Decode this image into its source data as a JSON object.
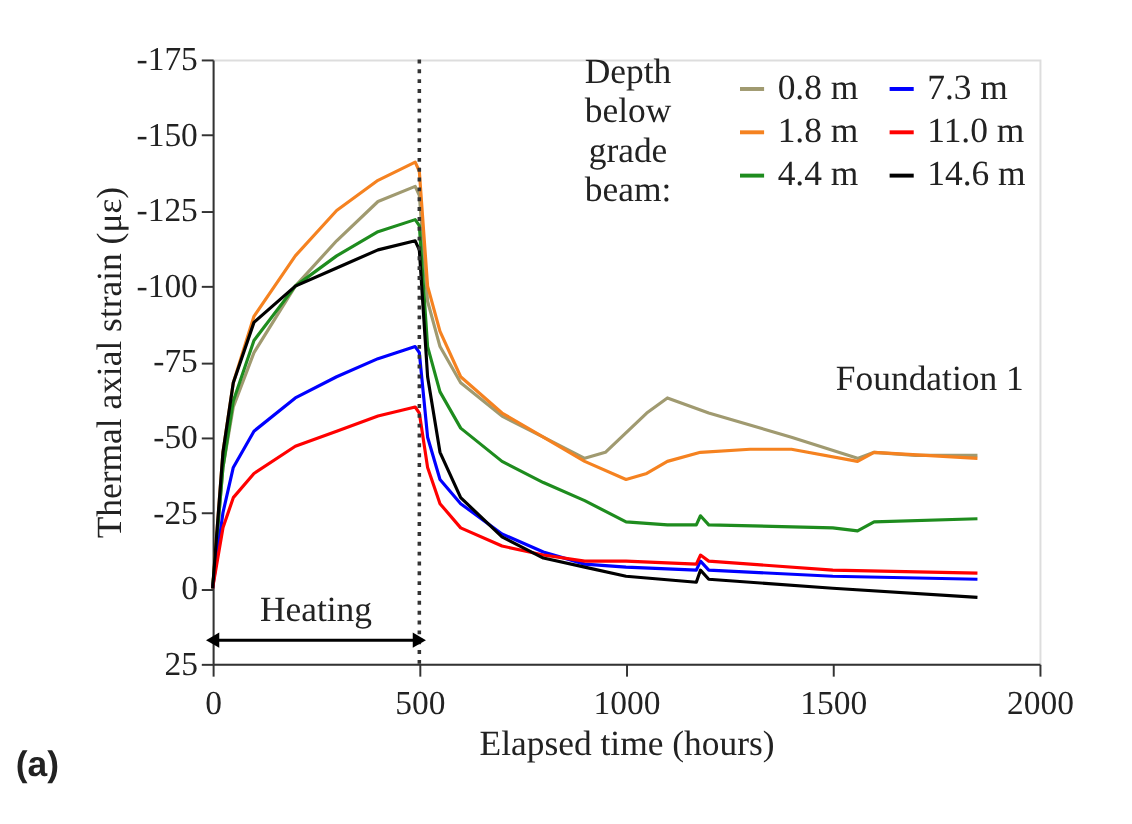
{
  "chart_data": {
    "type": "line",
    "xlabel": "Elapsed time (hours)",
    "ylabel": "Thermal axial strain (με)",
    "legend_title": "Depth below grade beam:",
    "xlim": [
      0,
      2000
    ],
    "xticks": [
      0,
      500,
      1000,
      1500,
      2000
    ],
    "ylim": [
      25,
      -175
    ],
    "yticks": [
      -175,
      -150,
      -125,
      -100,
      -75,
      -50,
      -25,
      0,
      25
    ],
    "grid": false,
    "legend": "top right",
    "marker": "none",
    "line_style": "solid",
    "ref_lines": [
      {
        "axis": "x",
        "value": 500,
        "color": "#333333",
        "line_style": "dotted"
      }
    ],
    "annotations": [
      "Foundation 1",
      "(a)",
      "Heating"
    ],
    "series": [
      {
        "name": "0.8 m",
        "color": "#a09a70",
        "x": [
          0,
          25,
          50,
          100,
          200,
          300,
          400,
          490,
          500,
          520,
          550,
          600,
          700,
          800,
          900,
          950,
          1050,
          1100,
          1200,
          1400,
          1560,
          1600,
          1700,
          1850
        ],
        "values": [
          0,
          -40,
          -60,
          -78,
          -100,
          -115,
          -128,
          -133,
          -130,
          -95,
          -80,
          -68,
          -57,
          -50,
          -43,
          -45,
          -58,
          -63,
          -58,
          -50,
          -43,
          -45,
          -44,
          -44
        ]
      },
      {
        "name": "1.8 m",
        "color": "#f58220",
        "x": [
          0,
          25,
          50,
          100,
          200,
          300,
          400,
          490,
          500,
          520,
          550,
          600,
          700,
          800,
          900,
          1000,
          1050,
          1100,
          1180,
          1300,
          1400,
          1560,
          1600,
          1850
        ],
        "values": [
          0,
          -45,
          -68,
          -90,
          -110,
          -125,
          -135,
          -141,
          -138,
          -100,
          -85,
          -70,
          -58,
          -50,
          -42,
          -36,
          -38,
          -42,
          -45,
          -46,
          -46,
          -42,
          -45,
          -43
        ]
      },
      {
        "name": "4.4 m",
        "color": "#1e8c1e",
        "x": [
          0,
          25,
          50,
          100,
          200,
          300,
          400,
          490,
          500,
          520,
          550,
          600,
          700,
          800,
          900,
          1000,
          1100,
          1170,
          1180,
          1200,
          1500,
          1560,
          1600,
          1850
        ],
        "values": [
          0,
          -40,
          -62,
          -82,
          -100,
          -110,
          -118,
          -122,
          -120,
          -80,
          -65,
          -53,
          -42,
          -35,
          -29,
          -22,
          -21,
          -21,
          -24,
          -21,
          -20,
          -19,
          -22,
          -23
        ]
      },
      {
        "name": "7.3 m",
        "color": "#0000ff",
        "x": [
          0,
          25,
          50,
          100,
          200,
          300,
          400,
          490,
          500,
          520,
          550,
          600,
          700,
          800,
          900,
          1000,
          1170,
          1180,
          1200,
          1500,
          1850
        ],
        "values": [
          0,
          -25,
          -40,
          -52,
          -63,
          -70,
          -76,
          -80,
          -78,
          -50,
          -36,
          -28,
          -18,
          -12,
          -8,
          -7,
          -6,
          -9,
          -6,
          -4,
          -3
        ]
      },
      {
        "name": "11.0 m",
        "color": "#ff0000",
        "x": [
          0,
          25,
          50,
          100,
          200,
          300,
          400,
          490,
          500,
          520,
          550,
          600,
          700,
          800,
          900,
          1000,
          1170,
          1180,
          1200,
          1500,
          1850
        ],
        "values": [
          0,
          -20,
          -30,
          -38,
          -47,
          -52,
          -57,
          -60,
          -58,
          -40,
          -28,
          -20,
          -14,
          -11,
          -9,
          -9,
          -8,
          -11,
          -9,
          -6,
          -5
        ]
      },
      {
        "name": "14.6 m",
        "color": "#000000",
        "x": [
          0,
          25,
          50,
          100,
          200,
          300,
          400,
          490,
          500,
          520,
          550,
          600,
          700,
          800,
          900,
          1000,
          1170,
          1180,
          1200,
          1500,
          1850
        ],
        "values": [
          0,
          -45,
          -68,
          -88,
          -100,
          -106,
          -112,
          -115,
          -112,
          -70,
          -45,
          -30,
          -17,
          -10,
          -7,
          -4,
          -2,
          -6,
          -3,
          0,
          3
        ]
      }
    ]
  }
}
